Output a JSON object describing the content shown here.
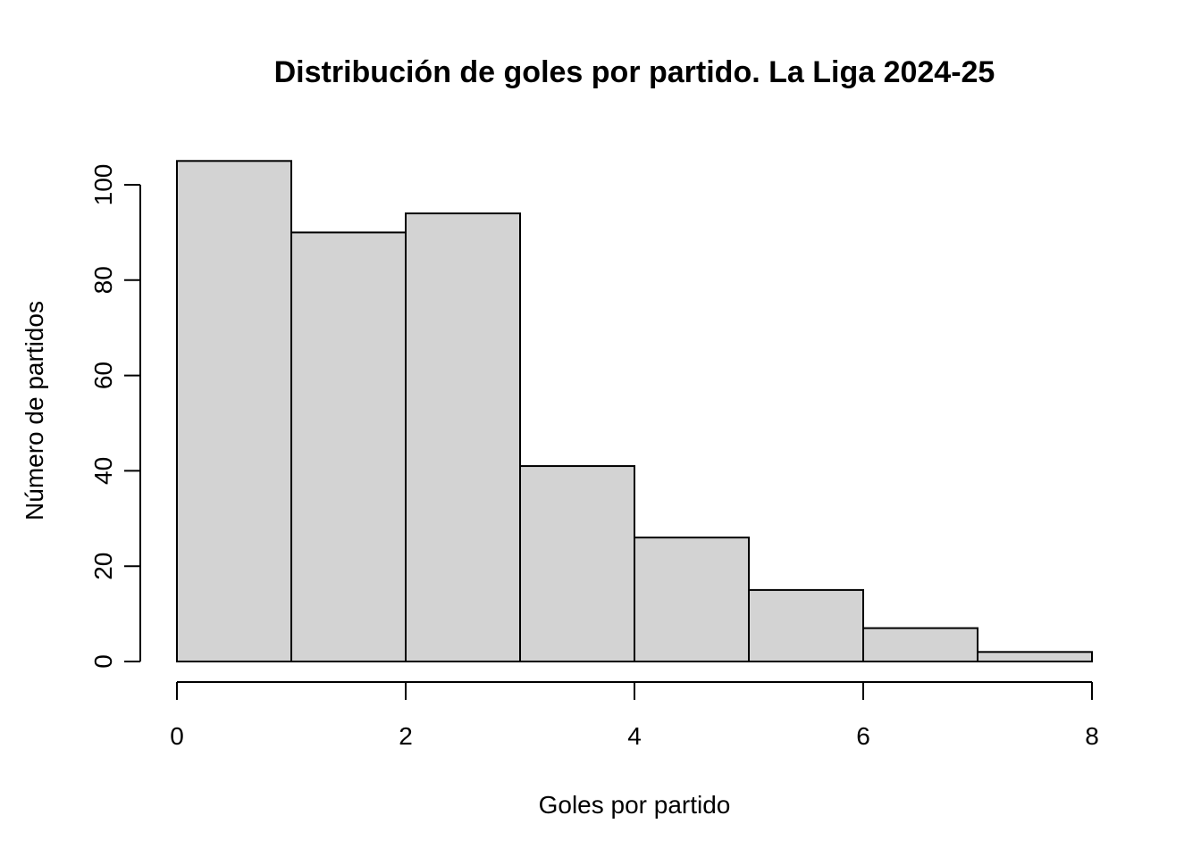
{
  "chart_data": {
    "type": "bar",
    "subtype": "histogram",
    "title": "Distribución de goles por partido. La Liga 2024-25",
    "xlabel": "Goles por partido",
    "ylabel": "Número de partidos",
    "bins": [
      {
        "x0": 0,
        "x1": 1,
        "count": 105
      },
      {
        "x0": 1,
        "x1": 2,
        "count": 90
      },
      {
        "x0": 2,
        "x1": 3,
        "count": 94
      },
      {
        "x0": 3,
        "x1": 4,
        "count": 41
      },
      {
        "x0": 4,
        "x1": 5,
        "count": 26
      },
      {
        "x0": 5,
        "x1": 6,
        "count": 15
      },
      {
        "x0": 6,
        "x1": 7,
        "count": 7
      },
      {
        "x0": 7,
        "x1": 8,
        "count": 2
      }
    ],
    "xlim": [
      0,
      8
    ],
    "ylim": [
      0,
      100
    ],
    "x_ticks": [
      0,
      2,
      4,
      6,
      8
    ],
    "y_ticks": [
      0,
      20,
      40,
      60,
      80,
      100
    ],
    "grid": false,
    "bar_color": "#d3d3d3",
    "edge_color": "#000000"
  }
}
